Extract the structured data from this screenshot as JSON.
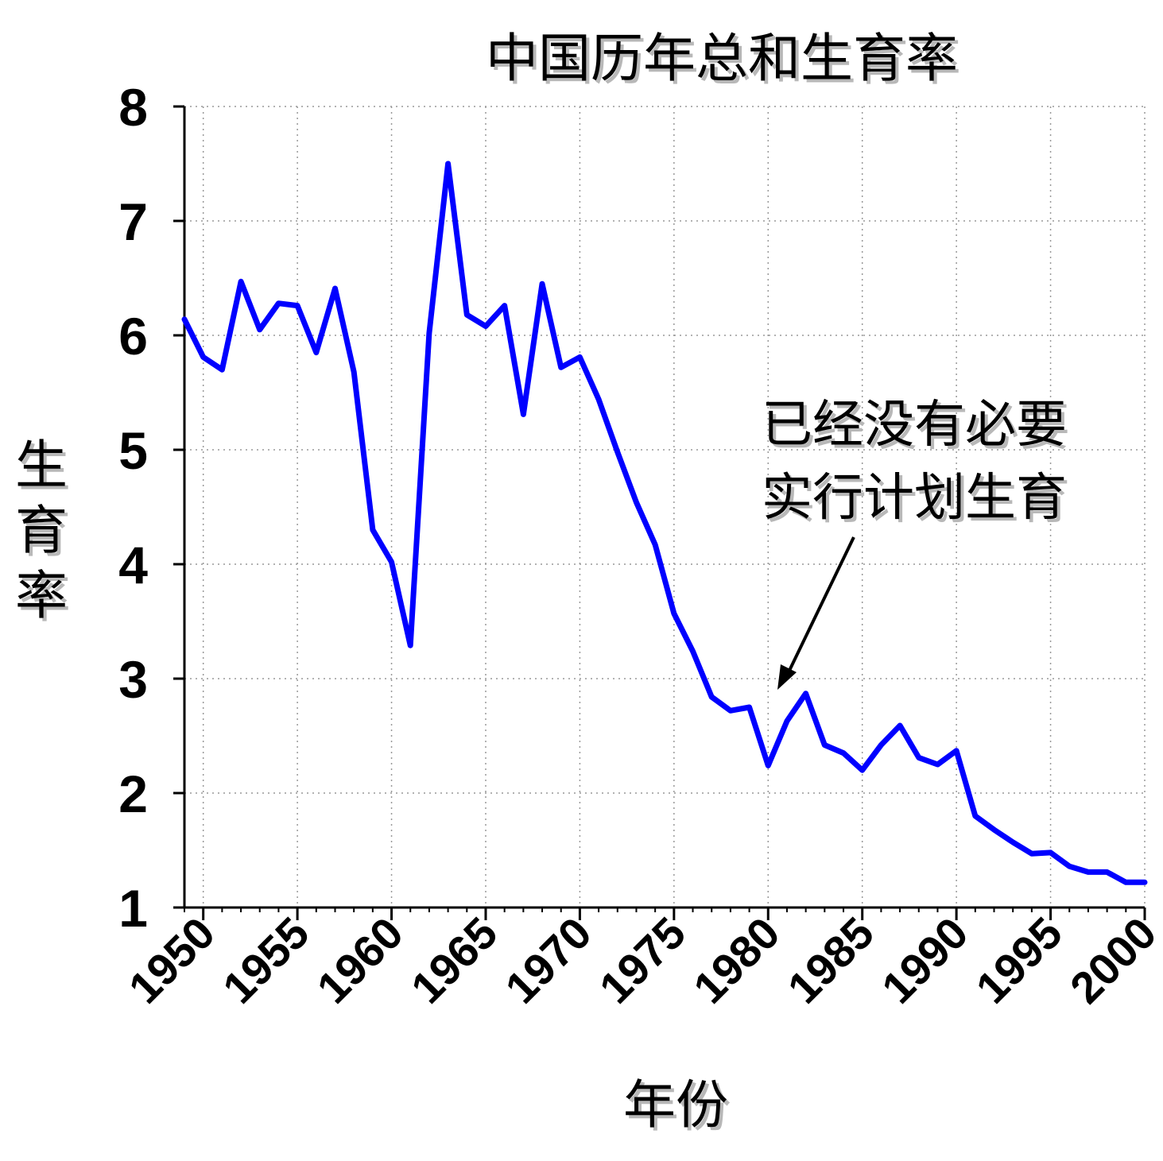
{
  "chart_data": {
    "type": "line",
    "title": "中国历年总和生育率",
    "xlabel": "年份",
    "ylabel": "生育率",
    "xlim": [
      1949,
      2000
    ],
    "ylim": [
      1,
      8
    ],
    "x_ticks": [
      "1950",
      "1955",
      "1960",
      "1965",
      "1970",
      "1975",
      "1980",
      "1985",
      "1990",
      "1995",
      "2000"
    ],
    "y_ticks": [
      "1",
      "2",
      "3",
      "4",
      "5",
      "6",
      "7",
      "8"
    ],
    "grid": true,
    "line_color": "#0000ff",
    "series": [
      {
        "x": [
          1949,
          1950,
          1951,
          1952,
          1953,
          1954,
          1955,
          1956,
          1957,
          1958,
          1959,
          1960,
          1961,
          1962,
          1963,
          1964,
          1965,
          1966,
          1967,
          1968,
          1969,
          1970,
          1971,
          1972,
          1973,
          1974,
          1975,
          1976,
          1977,
          1978,
          1979,
          1980,
          1981,
          1982,
          1983,
          1984,
          1985,
          1986,
          1987,
          1988,
          1989,
          1990,
          1991,
          1992,
          1993,
          1994,
          1995,
          1996,
          1997,
          1998,
          1999,
          2000
        ],
        "y": [
          6.14,
          5.81,
          5.7,
          6.47,
          6.05,
          6.28,
          6.26,
          5.85,
          6.41,
          5.68,
          4.3,
          4.02,
          3.29,
          6.02,
          7.5,
          6.18,
          6.08,
          6.26,
          5.31,
          6.45,
          5.72,
          5.81,
          5.44,
          4.98,
          4.54,
          4.17,
          3.57,
          3.24,
          2.84,
          2.72,
          2.75,
          2.24,
          2.63,
          2.87,
          2.42,
          2.35,
          2.2,
          2.42,
          2.59,
          2.31,
          2.25,
          2.37,
          1.8,
          1.68,
          1.57,
          1.47,
          1.48,
          1.36,
          1.31,
          1.31,
          1.22,
          1.22
        ]
      }
    ],
    "annotation": {
      "lines": [
        "已经没有必要",
        "实行计划生育"
      ],
      "points_to_x": 1980.5,
      "points_to_y": 2.9
    }
  }
}
